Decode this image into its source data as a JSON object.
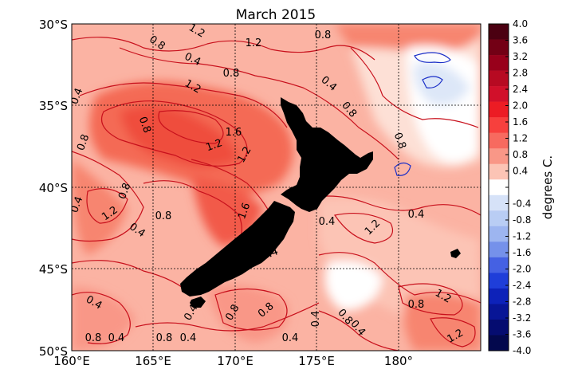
{
  "title": "March 2015",
  "x_ticks": [
    "160°E",
    "165°E",
    "170°E",
    "175°E",
    "180°"
  ],
  "y_ticks": [
    "30°S",
    "35°S",
    "40°S",
    "45°S",
    "50°S"
  ],
  "colorbar": {
    "label": "degrees C.",
    "ticks": [
      "4.0",
      "3.6",
      "3.2",
      "2.8",
      "2.4",
      "2.0",
      "1.6",
      "1.2",
      "0.8",
      "0.4",
      "",
      "-0.4",
      "-0.8",
      "-1.2",
      "-1.6",
      "-2.0",
      "-2.4",
      "-2.8",
      "-3.2",
      "-3.6",
      "-4.0"
    ],
    "colors": [
      "#4b0011",
      "#730015",
      "#98001b",
      "#b70a22",
      "#d1102a",
      "#ec1c24",
      "#f7403d",
      "#f76a5f",
      "#f99787",
      "#fcc4b5",
      "#ffffff",
      "#d6e2f8",
      "#b9cdf4",
      "#9db5f0",
      "#7591ea",
      "#4561e3",
      "#1f3ed9",
      "#0d22b9",
      "#081596",
      "#050c70",
      "#03084d"
    ]
  },
  "contour_labels": [
    "1.2",
    "1.2",
    "0.8",
    "0.8",
    "0.8",
    "0.4",
    "0.8",
    "1.2",
    "0.4",
    "0.4",
    "1.6",
    "1.2",
    "1.2",
    "0.8",
    "0.8",
    "0.8",
    "1.2",
    "1.6",
    "1.2",
    "0.4",
    "0.8",
    "0.4",
    "0.8",
    "1.2",
    "0.4",
    "0.4",
    "0.4",
    "0.4",
    "0.8",
    "0.4",
    "0.8",
    "0.4",
    "0.8",
    "0.8",
    "0.4",
    "0.4",
    "0.8",
    "0.4",
    "0.4",
    "0.8",
    "1.2",
    "1.2",
    "0.4"
  ],
  "colors": {
    "land": "#000000",
    "positive_contour": "#c8101c",
    "negative_contour": "#1a2ec8",
    "grid": "#000000"
  }
}
